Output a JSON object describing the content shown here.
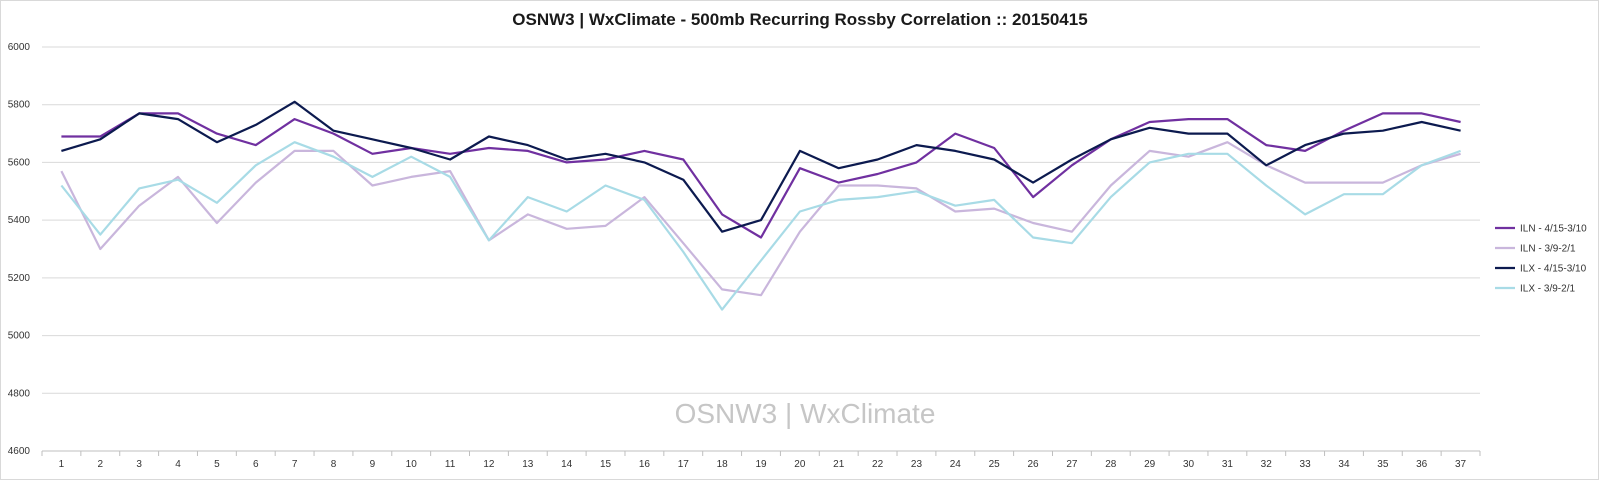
{
  "chart_data": {
    "type": "line",
    "title": "OSNW3 | WxClimate - 500mb Recurring Rossby Correlation :: 20150415",
    "watermark": "OSNW3 | WxClimate",
    "xlabel": "",
    "ylabel": "",
    "ylim": [
      4600,
      6000
    ],
    "yticks": [
      "4600",
      "4800",
      "5000",
      "5200",
      "5400",
      "5600",
      "5800",
      "6000"
    ],
    "grid": true,
    "legend_placement": "right",
    "categories": [
      "1",
      "2",
      "3",
      "4",
      "5",
      "6",
      "7",
      "8",
      "9",
      "10",
      "11",
      "12",
      "13",
      "14",
      "15",
      "16",
      "17",
      "18",
      "19",
      "20",
      "21",
      "22",
      "23",
      "24",
      "25",
      "26",
      "27",
      "28",
      "29",
      "30",
      "31",
      "32",
      "33",
      "34",
      "35",
      "36",
      "37"
    ],
    "series": [
      {
        "name": "ILN - 4/15-3/10",
        "color": "#7030a0",
        "values": [
          5690,
          5690,
          5770,
          5770,
          5700,
          5660,
          5750,
          5700,
          5630,
          5650,
          5630,
          5650,
          5640,
          5600,
          5610,
          5640,
          5610,
          5420,
          5340,
          5580,
          5530,
          5560,
          5600,
          5700,
          5650,
          5480,
          5590,
          5680,
          5740,
          5750,
          5750,
          5660,
          5640,
          5710,
          5770,
          5770,
          5740
        ]
      },
      {
        "name": "ILN - 3/9-2/1",
        "color": "#c9b6dc",
        "values": [
          5570,
          5300,
          5450,
          5550,
          5390,
          5530,
          5640,
          5640,
          5520,
          5550,
          5570,
          5330,
          5420,
          5370,
          5380,
          5480,
          5320,
          5160,
          5140,
          5360,
          5520,
          5520,
          5510,
          5430,
          5440,
          5390,
          5360,
          5520,
          5640,
          5620,
          5670,
          5590,
          5530,
          5530,
          5530,
          5590,
          5630
        ]
      },
      {
        "name": "ILX - 4/15-3/10",
        "color": "#0c1a4f",
        "values": [
          5640,
          5680,
          5770,
          5750,
          5670,
          5730,
          5810,
          5710,
          5680,
          5650,
          5610,
          5690,
          5660,
          5610,
          5630,
          5600,
          5540,
          5360,
          5400,
          5640,
          5580,
          5610,
          5660,
          5640,
          5610,
          5530,
          5610,
          5680,
          5720,
          5700,
          5700,
          5590,
          5660,
          5700,
          5710,
          5740,
          5710
        ]
      },
      {
        "name": "ILX - 3/9-2/1",
        "color": "#a8dbe6",
        "values": [
          5520,
          5350,
          5510,
          5540,
          5460,
          5590,
          5670,
          5620,
          5550,
          5620,
          5550,
          5330,
          5480,
          5430,
          5520,
          5470,
          5290,
          5090,
          5260,
          5430,
          5470,
          5480,
          5500,
          5450,
          5470,
          5340,
          5320,
          5480,
          5600,
          5630,
          5630,
          5520,
          5420,
          5490,
          5490,
          5590,
          5640
        ]
      }
    ]
  }
}
